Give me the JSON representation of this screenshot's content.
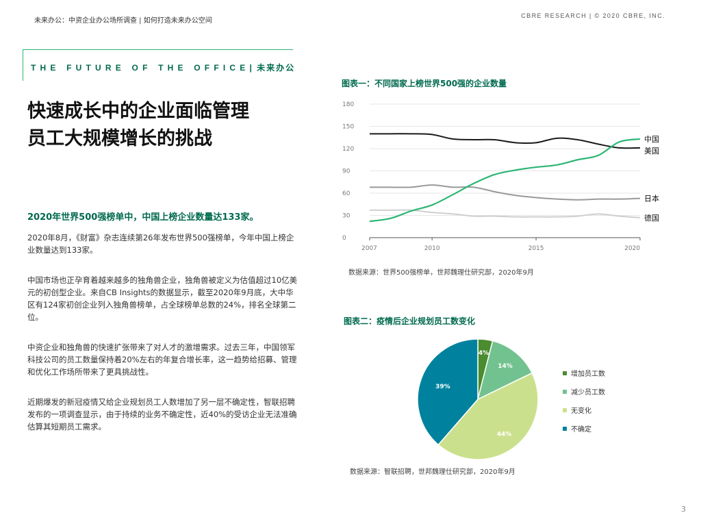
{
  "header": {
    "left": "未来办公：中资企业办公场所调查 | 如何打造未来办公空间",
    "right": "CBRE RESEARCH | © 2020 CBRE, INC."
  },
  "banner": {
    "en": "THE FUTURE OF THE OFFICE",
    "cn": "| 未来办公"
  },
  "headline": {
    "line1": "快速成长中的企业面临管理",
    "line2": "员工大规模增长的挑战"
  },
  "subhead": "2020年世界500强榜单中，中国上榜企业数量达133家。",
  "paragraphs": [
    "2020年8月，《财富》杂志连续第26年发布世界500强榜单，今年中国上榜企业数量达到133家。",
    "中国市场也正孕育着越来越多的独角兽企业，独角兽被定义为估值超过10亿美元的初创型企业。来自CB Insights的数据显示，截至2020年9月底，大中华区有124家初创企业列入独角兽榜单，占全球榜单总数的24%，排名全球第二位。",
    "中资企业和独角兽的快速扩张带来了对人才的激增需求。过去三年，中国领军科技公司的员工数量保持着20%左右的年复合增长率，这一趋势给招募、管理和优化工作场所带来了更具挑战性。",
    "近期爆发的新冠疫情又给企业规划员工人数增加了另一层不确定性，智联招聘发布的一项调查显示，由于持续的业务不确定性，近40%的受访企业无法准确估算其短期员工需求。"
  ],
  "chart1": {
    "title": "图表一：不同国家上榜世界500强的企业数量",
    "source": "数据来源：世界500强榜单，世邦魏理仕研究部，2020年9月"
  },
  "chart2": {
    "title": "图表二：疫情后企业规划员工数变化",
    "source": "数据来源：智联招聘，世邦魏理仕研究部，2020年9月"
  },
  "page_number": "3",
  "chart_data": [
    {
      "type": "line",
      "title": "图表一：不同国家上榜世界500强的企业数量",
      "x": [
        2007,
        2008,
        2009,
        2010,
        2011,
        2012,
        2013,
        2014,
        2015,
        2016,
        2017,
        2018,
        2019,
        2020
      ],
      "xticks": [
        "2007",
        "2010",
        "2015",
        "2020"
      ],
      "ylim": [
        0,
        180
      ],
      "yticks": [
        "0",
        "30",
        "60",
        "90",
        "120",
        "150",
        "180"
      ],
      "series": [
        {
          "name": "中国",
          "color": "#2bb673",
          "values": [
            22,
            26,
            36,
            44,
            58,
            73,
            85,
            91,
            95,
            98,
            105,
            111,
            129,
            133
          ]
        },
        {
          "name": "美国",
          "color": "#1a1a1a",
          "values": [
            140,
            140,
            140,
            139,
            133,
            132,
            132,
            128,
            128,
            134,
            132,
            126,
            121,
            121
          ]
        },
        {
          "name": "日本",
          "color": "#999999",
          "values": [
            68,
            68,
            68,
            71,
            68,
            68,
            62,
            57,
            54,
            52,
            51,
            52,
            52,
            53
          ]
        },
        {
          "name": "德国",
          "color": "#cfcfcf",
          "values": [
            37,
            37,
            37,
            34,
            32,
            29,
            29,
            28,
            28,
            28,
            29,
            32,
            29,
            27
          ]
        }
      ]
    },
    {
      "type": "pie",
      "title": "图表二：疫情后企业规划员工数变化",
      "slices": [
        {
          "name": "增加员工数",
          "value": 4,
          "label": "4%",
          "color": "#4a8c2f"
        },
        {
          "name": "减少员工数",
          "value": 14,
          "label": "14%",
          "color": "#72c290"
        },
        {
          "name": "无变化",
          "value": 44,
          "label": "44%",
          "color": "#cbe08d"
        },
        {
          "name": "不确定",
          "value": 39,
          "label": "39%",
          "color": "#00829f"
        }
      ]
    }
  ]
}
